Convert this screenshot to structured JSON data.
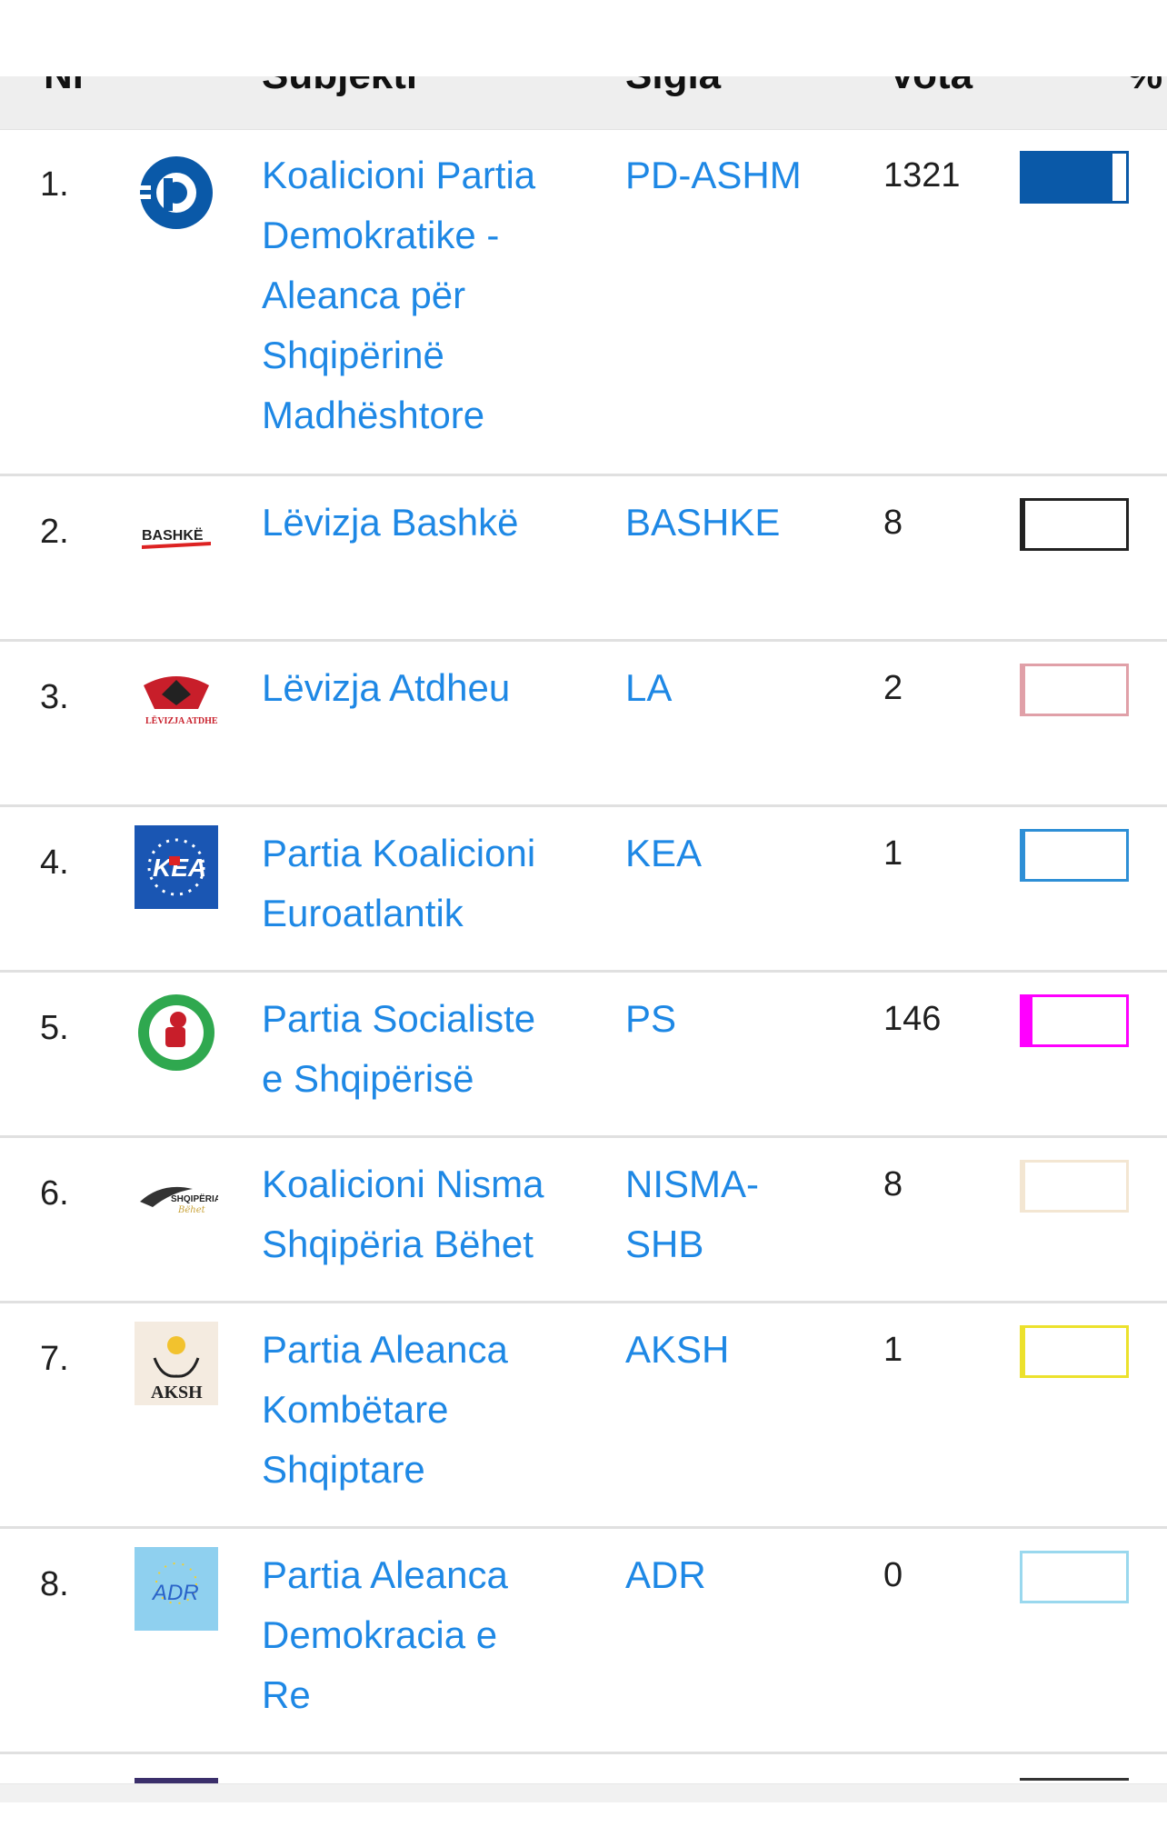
{
  "table": {
    "headers": {
      "nr": "Nr",
      "subjekti": "Subjekti",
      "sigla": "Sigla",
      "vota": "Vota",
      "percent": "%"
    },
    "rows": [
      {
        "nr": "1.",
        "name_lines": [
          "Koalicioni Partia",
          "Demokratike -",
          "Aleanca për",
          "Shqipërinë",
          "Madhështore"
        ],
        "sigla_lines": [
          "PD-ASHM"
        ],
        "votes": "1321",
        "logo": "pd-logo",
        "bar_color": "#0a59a8",
        "bar_fill": 0.87
      },
      {
        "nr": "2.",
        "name_lines": [
          "Lëvizja Bashkë"
        ],
        "sigla_lines": [
          "BASHKE"
        ],
        "votes": "8",
        "logo": "bashke-logo",
        "bar_color": "#222222",
        "bar_fill": 0.005
      },
      {
        "nr": "3.",
        "name_lines": [
          "Lëvizja Atdheu"
        ],
        "sigla_lines": [
          "LA"
        ],
        "votes": "2",
        "logo": "atdheu-logo",
        "bar_color": "#e0a0a8",
        "bar_fill": 0.001
      },
      {
        "nr": "4.",
        "name_lines": [
          "Partia Koalicioni",
          "Euroatlantik"
        ],
        "sigla_lines": [
          "KEA"
        ],
        "votes": "1",
        "logo": "kea-logo",
        "bar_color": "#2e8fd6",
        "bar_fill": 0.001
      },
      {
        "nr": "5.",
        "name_lines": [
          "Partia Socialiste",
          "e Shqipërisë"
        ],
        "sigla_lines": [
          "PS"
        ],
        "votes": "146",
        "logo": "ps-logo",
        "bar_color": "#ff00ff",
        "bar_fill": 0.096
      },
      {
        "nr": "6.",
        "name_lines": [
          "Koalicioni Nisma",
          "Shqipëria Bëhet"
        ],
        "sigla_lines": [
          "NISMA-",
          "SHB"
        ],
        "votes": "8",
        "logo": "nisma-logo",
        "bar_color": "#f3e6d2",
        "bar_fill": 0.005
      },
      {
        "nr": "7.",
        "name_lines": [
          "Partia Aleanca",
          "Kombëtare",
          "Shqiptare"
        ],
        "sigla_lines": [
          "AKSH"
        ],
        "votes": "1",
        "logo": "aksh-logo",
        "bar_color": "#ece12c",
        "bar_fill": 0.001
      },
      {
        "nr": "8.",
        "name_lines": [
          "Partia Aleanca",
          "Demokracia e",
          "Re"
        ],
        "sigla_lines": [
          "ADR"
        ],
        "votes": "0",
        "logo": "adr-logo",
        "bar_color": "#9ad8ee",
        "bar_fill": 0
      }
    ],
    "logo_texts": {
      "bashke": "BASHKË",
      "atdheu": "LËVIZJA ATDHEU",
      "kea": "KEA",
      "nisma": "SHQIPËRIA",
      "nisma_sub": "Bëhet",
      "aksh": "AKSH",
      "adr": "ADR"
    }
  }
}
